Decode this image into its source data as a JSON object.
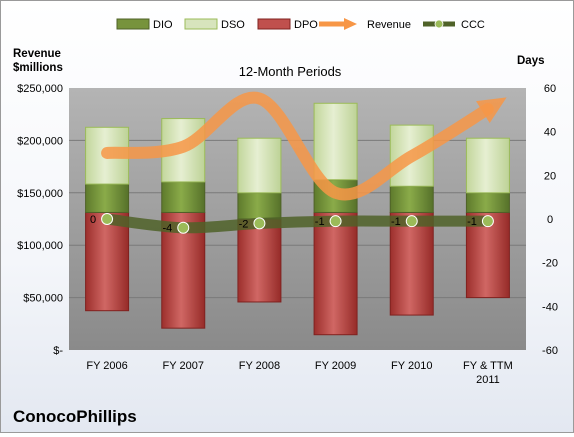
{
  "company": "ConocoPhillips",
  "chart_data": {
    "type": "bar",
    "title": "12-Month Periods",
    "stacking": "stacked columns with a secondary-axis line",
    "left_axis": {
      "label_line1": "Revenue",
      "label_line2": "$millions",
      "min": 0,
      "max": 250000,
      "ticks": [
        0,
        50000,
        100000,
        150000,
        200000,
        250000
      ],
      "tick_labels": [
        "$-",
        "$50,000",
        "$100,000",
        "$150,000",
        "$200,000",
        "$250,000"
      ]
    },
    "right_axis": {
      "label": "Days",
      "min": -60,
      "max": 60,
      "ticks": [
        -60,
        -40,
        -20,
        0,
        20,
        40,
        60
      ],
      "tick_labels": [
        "-60",
        "-40",
        "-20",
        "0",
        "20",
        "40",
        "60"
      ]
    },
    "categories": [
      [
        "FY 2006"
      ],
      [
        "FY 2007"
      ],
      [
        "FY 2008"
      ],
      [
        "FY 2009"
      ],
      [
        "FY 2010"
      ],
      [
        "FY & TTM",
        "2011"
      ]
    ],
    "legend": {
      "placement": "top",
      "items": [
        {
          "name": "DIO",
          "kind": "box",
          "color": "#77933c",
          "dark": "#4f6228"
        },
        {
          "name": "DSO",
          "kind": "box",
          "color": "#d7e4bd",
          "dark": "#9bbb59"
        },
        {
          "name": "DPO",
          "kind": "box",
          "color": "#c0504d",
          "dark": "#7f2220"
        },
        {
          "name": "Revenue",
          "kind": "arrow",
          "color": "#f79646"
        },
        {
          "name": "CCC",
          "kind": "line-marker",
          "color": "#4f6228"
        }
      ]
    },
    "series": [
      {
        "name": "DPO",
        "axis": "right",
        "span_from": [
          -42,
          -50,
          -38,
          -53,
          -44,
          -36
        ],
        "span_to": [
          3,
          3,
          0,
          3,
          3,
          3
        ]
      },
      {
        "name": "DIO",
        "axis": "right",
        "span_from": [
          3,
          3,
          0,
          3,
          3,
          3
        ],
        "span_to": [
          16,
          17,
          12,
          18,
          15,
          12
        ]
      },
      {
        "name": "DSO",
        "axis": "right",
        "span_from": [
          16,
          17,
          12,
          18,
          15,
          12
        ],
        "span_to": [
          42,
          46,
          37,
          53,
          43,
          37
        ]
      },
      {
        "name": "Revenue",
        "axis": "left",
        "values": [
          188000,
          194000,
          240000,
          150000,
          185000,
          230000
        ]
      },
      {
        "name": "CCC",
        "axis": "right",
        "values": [
          0,
          -4,
          -2,
          -1,
          -1,
          -1
        ]
      }
    ],
    "ccc_labels": [
      "0",
      "-4",
      "-2",
      "-1",
      "-1",
      "-1"
    ],
    "colors": {
      "plot_bg": "#8c8c8c",
      "dio": "#77933c",
      "dso": "#d7e4bd",
      "dpo": "#c0504d",
      "revenue": "#f79646",
      "ccc": "#4f6228",
      "ccc_marker": "#9bbb59"
    },
    "grid": true
  }
}
